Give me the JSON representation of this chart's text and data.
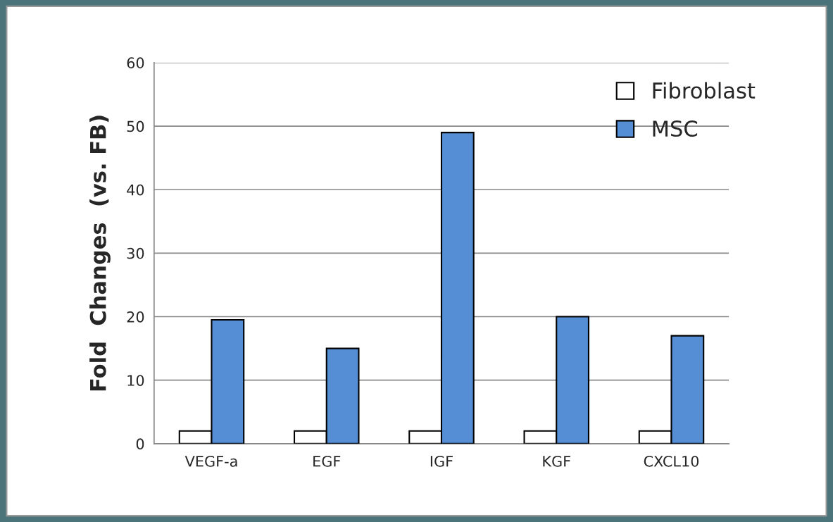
{
  "chart_data": {
    "type": "bar",
    "ylabel": "Fold  Changes  (vs. FB)",
    "categories": [
      "VEGF-a",
      "EGF",
      "IGF",
      "KGF",
      "CXCL10"
    ],
    "series": [
      {
        "name": "Fibroblast",
        "color": "#ffffff",
        "values": [
          2,
          2,
          2,
          2,
          2
        ]
      },
      {
        "name": "MSC",
        "color": "#558ed5",
        "values": [
          19.5,
          15,
          49,
          20,
          17
        ]
      }
    ],
    "ylim": [
      0,
      60
    ],
    "yticks": [
      0,
      10,
      20,
      30,
      40,
      50,
      60
    ],
    "grid": "y",
    "legend": "top right"
  }
}
